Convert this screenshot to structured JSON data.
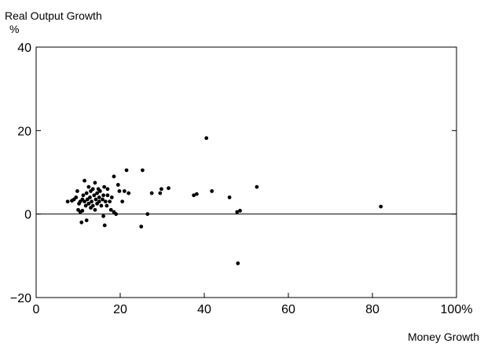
{
  "chart_data": {
    "type": "scatter",
    "title": "",
    "ylabel": "Real Output Growth",
    "ylabel_unit": "%",
    "xlabel": "Money Growth",
    "x_unit": "%",
    "xlim": [
      0,
      100
    ],
    "ylim": [
      -20,
      40
    ],
    "x_ticks": [
      0,
      20,
      40,
      60,
      80,
      100
    ],
    "x_tick_labels": [
      "0",
      "20",
      "40",
      "60",
      "80",
      "100"
    ],
    "y_ticks": [
      -20,
      0,
      20,
      40
    ],
    "y_tick_labels": [
      "−20",
      "0",
      "20",
      "40"
    ],
    "zero_line": true,
    "grid": false,
    "legend": "none",
    "point_color": "#000000",
    "points": [
      {
        "x": 7.5,
        "y": 3.0
      },
      {
        "x": 8.5,
        "y": 3.2
      },
      {
        "x": 9.0,
        "y": 3.5
      },
      {
        "x": 9.5,
        "y": 4.0
      },
      {
        "x": 9.8,
        "y": 5.5
      },
      {
        "x": 10.0,
        "y": 1.0
      },
      {
        "x": 10.2,
        "y": 2.5
      },
      {
        "x": 10.5,
        "y": 0.5
      },
      {
        "x": 10.5,
        "y": 3.0
      },
      {
        "x": 10.8,
        "y": -2.0
      },
      {
        "x": 11.0,
        "y": 3.5
      },
      {
        "x": 11.0,
        "y": 0.8
      },
      {
        "x": 11.2,
        "y": 4.5
      },
      {
        "x": 11.5,
        "y": 3.0
      },
      {
        "x": 11.5,
        "y": 8.0
      },
      {
        "x": 11.8,
        "y": 2.0
      },
      {
        "x": 12.0,
        "y": -1.5
      },
      {
        "x": 12.0,
        "y": 5.0
      },
      {
        "x": 12.2,
        "y": 3.5
      },
      {
        "x": 12.5,
        "y": 6.5
      },
      {
        "x": 12.5,
        "y": 2.5
      },
      {
        "x": 12.8,
        "y": 4.0
      },
      {
        "x": 13.0,
        "y": 1.5
      },
      {
        "x": 13.0,
        "y": 5.5
      },
      {
        "x": 13.2,
        "y": 3.0
      },
      {
        "x": 13.5,
        "y": 6.0
      },
      {
        "x": 13.5,
        "y": 2.0
      },
      {
        "x": 13.8,
        "y": 4.5
      },
      {
        "x": 14.0,
        "y": 1.0
      },
      {
        "x": 14.0,
        "y": 7.5
      },
      {
        "x": 14.2,
        "y": 3.5
      },
      {
        "x": 14.5,
        "y": 5.0
      },
      {
        "x": 14.5,
        "y": 2.5
      },
      {
        "x": 14.8,
        "y": 6.0
      },
      {
        "x": 15.0,
        "y": 4.0
      },
      {
        "x": 15.0,
        "y": 3.0
      },
      {
        "x": 15.2,
        "y": 5.5
      },
      {
        "x": 15.5,
        "y": 2.0
      },
      {
        "x": 15.8,
        "y": 3.5
      },
      {
        "x": 16.0,
        "y": -0.5
      },
      {
        "x": 16.0,
        "y": 4.5
      },
      {
        "x": 16.2,
        "y": 6.5
      },
      {
        "x": 16.3,
        "y": -2.7
      },
      {
        "x": 16.5,
        "y": 3.0
      },
      {
        "x": 16.8,
        "y": 2.0
      },
      {
        "x": 17.0,
        "y": 4.5
      },
      {
        "x": 17.0,
        "y": 6.0
      },
      {
        "x": 17.5,
        "y": 3.0
      },
      {
        "x": 17.8,
        "y": 1.0
      },
      {
        "x": 18.0,
        "y": 4.0
      },
      {
        "x": 18.5,
        "y": 9.0
      },
      {
        "x": 18.5,
        "y": 0.5
      },
      {
        "x": 19.0,
        "y": 0.0
      },
      {
        "x": 19.5,
        "y": 7.0
      },
      {
        "x": 19.8,
        "y": 5.5
      },
      {
        "x": 20.5,
        "y": 3.0
      },
      {
        "x": 21.0,
        "y": 5.5
      },
      {
        "x": 21.5,
        "y": 10.5
      },
      {
        "x": 22.0,
        "y": 5.0
      },
      {
        "x": 25.0,
        "y": -3.0
      },
      {
        "x": 25.3,
        "y": 10.5
      },
      {
        "x": 26.5,
        "y": 0.0
      },
      {
        "x": 27.5,
        "y": 5.0
      },
      {
        "x": 29.5,
        "y": 5.0
      },
      {
        "x": 29.8,
        "y": 6.0
      },
      {
        "x": 31.5,
        "y": 6.2
      },
      {
        "x": 37.5,
        "y": 4.5
      },
      {
        "x": 38.2,
        "y": 4.8
      },
      {
        "x": 40.5,
        "y": 18.2
      },
      {
        "x": 41.8,
        "y": 5.5
      },
      {
        "x": 46.0,
        "y": 4.0
      },
      {
        "x": 47.8,
        "y": 0.5
      },
      {
        "x": 48.0,
        "y": -11.8
      },
      {
        "x": 48.5,
        "y": 0.8
      },
      {
        "x": 52.5,
        "y": 6.5
      },
      {
        "x": 82.0,
        "y": 1.8
      }
    ]
  }
}
